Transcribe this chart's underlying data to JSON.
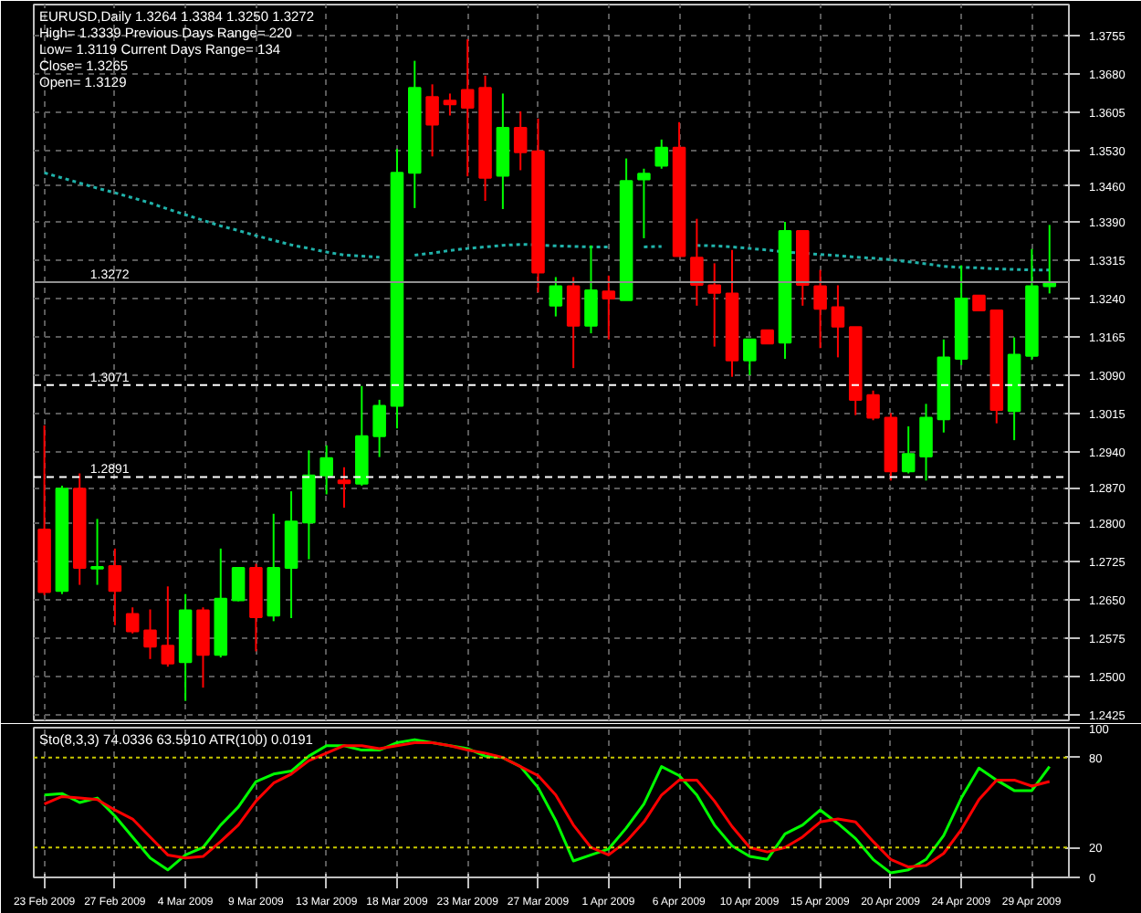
{
  "chart_data": [
    {
      "type": "candlestick",
      "title": "EURUSD,Daily  1.3264 1.3384 1.3250 1.3272",
      "annotations": [
        "High= 1.3339   Previous Days Range= 220",
        "Low= 1.3119   Current Days Range= 134",
        "Close= 1.3265",
        "Open= 1.3129"
      ],
      "categories": [
        null,
        null,
        null,
        null,
        null,
        null,
        null,
        null,
        null,
        null,
        null,
        null,
        null,
        null,
        null,
        null,
        null,
        null,
        null,
        null,
        null,
        null,
        null,
        null,
        null,
        null,
        null,
        null,
        null,
        null,
        null,
        null,
        null,
        null,
        null,
        null,
        null,
        null,
        null,
        null,
        null,
        null,
        null,
        null,
        null,
        null,
        null,
        null,
        null,
        null,
        null,
        null,
        null,
        null,
        null,
        null,
        null,
        null
      ],
      "ohlc": [
        [
          1.2788,
          1.2992,
          1.266,
          1.2666
        ],
        [
          1.2668,
          1.2874,
          1.2662,
          1.2868
        ],
        [
          1.2868,
          1.2898,
          1.268,
          1.2713
        ],
        [
          1.2712,
          1.2809,
          1.268,
          1.2715
        ],
        [
          1.2717,
          1.2751,
          1.2601,
          1.2668
        ],
        [
          1.2623,
          1.2636,
          1.2585,
          1.2589
        ],
        [
          1.2591,
          1.2632,
          1.2535,
          1.2559
        ],
        [
          1.2561,
          1.2677,
          1.252,
          1.2526
        ],
        [
          1.2529,
          1.2662,
          1.2453,
          1.263
        ],
        [
          1.263,
          1.2636,
          1.2479,
          1.2543
        ],
        [
          1.2543,
          1.2751,
          1.2538,
          1.2653
        ],
        [
          1.265,
          1.2713,
          1.2648,
          1.2713
        ],
        [
          1.2713,
          1.2721,
          1.255,
          1.2617
        ],
        [
          1.262,
          1.2819,
          1.2609,
          1.2713
        ],
        [
          1.2713,
          1.2863,
          1.2615,
          1.2804
        ],
        [
          1.2802,
          1.2943,
          1.273,
          1.2894
        ],
        [
          1.2894,
          1.2953,
          1.2857,
          1.2928
        ],
        [
          1.2884,
          1.291,
          1.2831,
          1.2879
        ],
        [
          1.2878,
          1.3069,
          1.2874,
          1.2971
        ],
        [
          1.2971,
          1.3042,
          1.293,
          1.303
        ],
        [
          1.303,
          1.3533,
          1.2986,
          1.3486
        ],
        [
          1.3486,
          1.3705,
          1.3417,
          1.3652
        ],
        [
          1.3634,
          1.3659,
          1.3518,
          1.358
        ],
        [
          1.3627,
          1.3641,
          1.3598,
          1.362
        ],
        [
          1.3648,
          1.3747,
          1.3479,
          1.3613
        ],
        [
          1.3652,
          1.3676,
          1.3431,
          1.3476
        ],
        [
          1.348,
          1.3641,
          1.3415,
          1.3574
        ],
        [
          1.3574,
          1.3606,
          1.3491,
          1.3526
        ],
        [
          1.3528,
          1.3592,
          1.3252,
          1.3291
        ],
        [
          1.3226,
          1.3282,
          1.3205,
          1.3264
        ],
        [
          1.3264,
          1.3282,
          1.3104,
          1.3187
        ],
        [
          1.3187,
          1.3344,
          1.3172,
          1.3256
        ],
        [
          1.3254,
          1.3285,
          1.316,
          1.324
        ],
        [
          1.3237,
          1.3514,
          1.3237,
          1.347
        ],
        [
          1.3473,
          1.3494,
          1.3358,
          1.3484
        ],
        [
          1.35,
          1.3551,
          1.3494,
          1.3535
        ],
        [
          1.3535,
          1.3585,
          1.3323,
          1.3323
        ],
        [
          1.332,
          1.3396,
          1.3226,
          1.3267
        ],
        [
          1.3266,
          1.3309,
          1.3146,
          1.3251
        ],
        [
          1.325,
          1.3335,
          1.3087,
          1.3119
        ],
        [
          1.3119,
          1.316,
          1.309,
          1.316
        ],
        [
          1.3178,
          1.3178,
          1.3152,
          1.3152
        ],
        [
          1.3154,
          1.339,
          1.3122,
          1.3372
        ],
        [
          1.3372,
          1.3372,
          1.3226,
          1.3267
        ],
        [
          1.3264,
          1.3296,
          1.3143,
          1.322
        ],
        [
          1.3223,
          1.3266,
          1.3125,
          1.3185
        ],
        [
          1.3184,
          1.3184,
          1.3012,
          1.3042
        ],
        [
          1.3051,
          1.306,
          1.3002,
          1.3007
        ],
        [
          1.3007,
          1.3016,
          1.2884,
          1.2902
        ],
        [
          1.2902,
          1.299,
          1.2898,
          1.2936
        ],
        [
          1.2931,
          1.3034,
          1.2884,
          1.3007
        ],
        [
          1.3004,
          1.316,
          1.2978,
          1.3125
        ],
        [
          1.3122,
          1.3305,
          1.311,
          1.324
        ],
        [
          1.3246,
          1.3246,
          1.3217,
          1.3217
        ],
        [
          1.3217,
          1.3217,
          1.2996,
          1.3022
        ],
        [
          1.302,
          1.3164,
          1.2963,
          1.313
        ],
        [
          1.3128,
          1.3337,
          1.312,
          1.3264
        ],
        [
          1.3264,
          1.3384,
          1.325,
          1.3272
        ]
      ],
      "colors": [
        "#ff0000",
        "#00ff00",
        "#ff0000",
        "#00ff00",
        "#ff0000",
        "#ff0000",
        "#ff0000",
        "#ff0000",
        "#00ff00",
        "#ff0000",
        "#00ff00",
        "#00ff00",
        "#ff0000",
        "#00ff00",
        "#00ff00",
        "#00ff00",
        "#00ff00",
        "#ff0000",
        "#00ff00",
        "#00ff00",
        "#00ff00",
        "#00ff00",
        "#ff0000",
        "#ff0000",
        "#ff0000",
        "#ff0000",
        "#00ff00",
        "#ff0000",
        "#ff0000",
        "#00ff00",
        "#ff0000",
        "#00ff00",
        "#ff0000",
        "#00ff00",
        "#00ff00",
        "#00ff00",
        "#ff0000",
        "#ff0000",
        "#ff0000",
        "#ff0000",
        "#00ff00",
        "#ff0000",
        "#00ff00",
        "#ff0000",
        "#ff0000",
        "#ff0000",
        "#ff0000",
        "#ff0000",
        "#ff0000",
        "#00ff00",
        "#00ff00",
        "#00ff00",
        "#00ff00",
        "#ff0000",
        "#ff0000",
        "#00ff00",
        "#00ff00",
        "#00ff00"
      ],
      "series": [
        {
          "type": "line",
          "color": "#20b2aa",
          "line_style": "dotted",
          "values": [
            1.3486,
            1.3476,
            1.3466,
            1.3456,
            1.3447,
            1.3437,
            1.3427,
            1.3415,
            1.3404,
            1.3393,
            1.3382,
            1.3373,
            1.3363,
            1.3354,
            1.3345,
            1.3338,
            1.3331,
            1.3325,
            1.3323,
            1.3321,
            null,
            1.3325,
            1.3329,
            1.3334,
            1.3338,
            1.3341,
            1.3344,
            1.3346,
            1.3345,
            1.3343,
            1.3342,
            1.3341,
            1.3341,
            null,
            1.3341,
            1.3342,
            null,
            1.3344,
            1.3343,
            1.3341,
            1.3338,
            1.3335,
            1.3331,
            1.3329,
            1.3326,
            1.3324,
            1.3321,
            1.3319,
            1.3316,
            1.3312,
            1.3308,
            1.3303,
            1.3301,
            1.33,
            1.3298,
            1.3297,
            1.3296,
            1.3296
          ]
        }
      ],
      "ylim": [
        1.2415,
        1.3815
      ],
      "yticks": [
        {
          "value": 1.2425,
          "label": "1.2425"
        },
        {
          "value": 1.25,
          "label": "1.2500"
        },
        {
          "value": 1.2575,
          "label": "1.2575"
        },
        {
          "value": 1.265,
          "label": "1.2650"
        },
        {
          "value": 1.2725,
          "label": "1.2725"
        },
        {
          "value": 1.28,
          "label": "1.2800"
        },
        {
          "value": 1.287,
          "label": "1.2870"
        },
        {
          "value": 1.294,
          "label": "1.2940"
        },
        {
          "value": 1.3015,
          "label": "1.3015"
        },
        {
          "value": 1.309,
          "label": "1.3090"
        },
        {
          "value": 1.3165,
          "label": "1.3165"
        },
        {
          "value": 1.324,
          "label": "1.3240"
        },
        {
          "value": 1.3315,
          "label": "1.3315"
        },
        {
          "value": 1.339,
          "label": "1.3390"
        },
        {
          "value": 1.346,
          "label": "1.3460"
        },
        {
          "value": 1.353,
          "label": "1.3530"
        },
        {
          "value": 1.3605,
          "label": "1.3605"
        },
        {
          "value": 1.368,
          "label": "1.3680"
        },
        {
          "value": 1.3755,
          "label": "1.3755"
        }
      ],
      "ref_lines": [
        {
          "axis": "y",
          "value": 1.3272,
          "label": "1.3272",
          "color": "#909090",
          "line_style": "solid"
        },
        {
          "axis": "y",
          "value": 1.3071,
          "label": "1.3071",
          "color": "#ffffff",
          "line_style": "dashed"
        },
        {
          "axis": "y",
          "value": 1.2891,
          "label": "1.2891",
          "color": "#ffffff",
          "line_style": "dashed"
        }
      ],
      "grid": true,
      "tick_labels": "y"
    },
    {
      "type": "line",
      "title": "Sto(8,3,3) 74.0336 63.5910  ATR(100) 0.0191",
      "categories": [
        "23 Feb 2009",
        null,
        null,
        null,
        "27 Feb 2009",
        null,
        null,
        null,
        "4 Mar 2009",
        null,
        null,
        null,
        "9 Mar 2009",
        null,
        null,
        null,
        "13 Mar 2009",
        null,
        null,
        null,
        "18 Mar 2009",
        null,
        null,
        null,
        "23 Mar 2009",
        null,
        null,
        null,
        "27 Mar 2009",
        null,
        null,
        null,
        "1 Apr 2009",
        null,
        null,
        null,
        "6 Apr 2009",
        null,
        null,
        null,
        "10 Apr 2009",
        null,
        null,
        null,
        "15 Apr 2009",
        null,
        null,
        null,
        "20 Apr 2009",
        null,
        null,
        null,
        "24 Apr 2009",
        null,
        null,
        null,
        "29 Apr 2009",
        null
      ],
      "series": [
        {
          "color": "#00ff00",
          "values": [
            55,
            56,
            50,
            53,
            41,
            27,
            13,
            5,
            15,
            20,
            35,
            47,
            64,
            69,
            71,
            81,
            88,
            88,
            85,
            85,
            90,
            92,
            90,
            88,
            86,
            81,
            80,
            74,
            60,
            38,
            11,
            15,
            19,
            33,
            49,
            74,
            68,
            55,
            35,
            21,
            14,
            12,
            29,
            35,
            45,
            36,
            26,
            12,
            3,
            5,
            12,
            28,
            53,
            73,
            65,
            58,
            58,
            74
          ]
        },
        {
          "color": "#ff0000",
          "values": [
            49,
            54,
            53,
            52,
            45,
            39,
            27,
            15,
            13,
            14,
            24,
            35,
            51,
            63,
            69,
            78,
            83,
            88,
            88,
            86,
            88,
            90,
            90,
            88,
            85,
            83,
            80,
            74,
            68,
            55,
            35,
            20,
            15,
            24,
            37,
            55,
            65,
            65,
            51,
            34,
            20,
            17,
            20,
            27,
            37,
            39,
            37,
            24,
            12,
            7,
            8,
            16,
            32,
            52,
            65,
            65,
            61,
            64
          ]
        }
      ],
      "ylim": [
        0,
        100
      ],
      "yticks": [
        0,
        20,
        80,
        100
      ],
      "ref_lines": [
        {
          "axis": "y",
          "value": 20,
          "color": "#c8c800",
          "line_style": "dotted"
        },
        {
          "axis": "y",
          "value": 80,
          "color": "#c8c800",
          "line_style": "dotted"
        }
      ],
      "grid": "x"
    }
  ]
}
